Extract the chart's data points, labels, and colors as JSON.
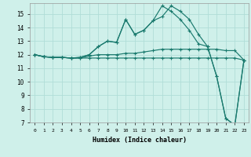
{
  "xlabel": "Humidex (Indice chaleur)",
  "bg_color": "#cff0ea",
  "grid_color": "#b0ddd8",
  "line_color": "#1a7a6e",
  "xmin": -0.5,
  "xmax": 23.5,
  "ymin": 7,
  "ymax": 15.8,
  "yticks": [
    7,
    8,
    9,
    10,
    11,
    12,
    13,
    14,
    15
  ],
  "lines": [
    [
      12.0,
      11.85,
      11.8,
      11.8,
      11.75,
      11.75,
      11.75,
      11.75,
      11.75,
      11.75,
      11.75,
      11.75,
      11.75,
      11.75,
      11.75,
      11.75,
      11.75,
      11.75,
      11.75,
      11.75,
      11.75,
      11.75,
      11.75,
      11.6
    ],
    [
      12.0,
      11.85,
      11.8,
      11.8,
      11.75,
      11.75,
      11.9,
      12.0,
      12.0,
      12.0,
      12.1,
      12.1,
      12.2,
      12.3,
      12.4,
      12.4,
      12.4,
      12.4,
      12.4,
      12.4,
      12.4,
      12.3,
      12.3,
      11.6
    ],
    [
      12.0,
      11.85,
      11.8,
      11.8,
      11.75,
      11.8,
      12.0,
      12.6,
      13.0,
      12.9,
      14.6,
      13.5,
      13.8,
      14.5,
      14.8,
      15.6,
      15.2,
      14.6,
      13.5,
      12.6,
      10.4,
      7.3,
      6.8,
      11.6
    ],
    [
      12.0,
      11.85,
      11.8,
      11.8,
      11.75,
      11.8,
      12.0,
      12.6,
      13.0,
      12.9,
      14.6,
      13.5,
      13.8,
      14.5,
      15.6,
      15.2,
      14.6,
      13.8,
      12.8,
      12.6,
      10.4,
      7.3,
      6.8,
      11.6
    ]
  ]
}
